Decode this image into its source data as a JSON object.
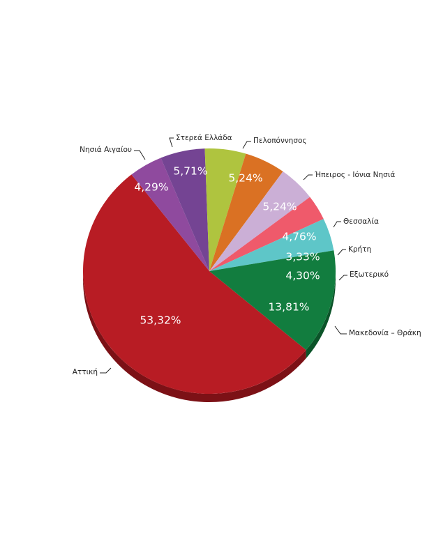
{
  "chart_data": {
    "type": "pie",
    "three_d": true,
    "legend": "none",
    "slices": [
      {
        "label": "Αττική",
        "value": 53.32,
        "display": "53,32%",
        "color": "#b81c24",
        "side": "#7c1116"
      },
      {
        "label": "Νησιά Αιγαίου",
        "value": 4.29,
        "display": "4,29%",
        "color": "#8f4a9e",
        "side": "#5f2f6a"
      },
      {
        "label": "Στερεά Ελλάδα",
        "value": 5.71,
        "display": "5,71%",
        "color": "#744493",
        "side": "#4c2c62"
      },
      {
        "label": "Πελοπόννησος",
        "value": 5.24,
        "display": "5,24%",
        "color": "#afc43f",
        "side": "#7a8a2a"
      },
      {
        "label": "Ήπειρος - Ιόνια Νησιά",
        "value": 5.24,
        "display": "5,24%",
        "color": "#da7123",
        "side": "#9a4f18"
      },
      {
        "label": "Θεσσαλία",
        "value": 4.76,
        "display": "4,76%",
        "color": "#cbafd6",
        "side": "#9a82a3"
      },
      {
        "label": "Κρήτη",
        "value": 3.33,
        "display": "3,33%",
        "color": "#ef5a6b",
        "side": "#b0404d"
      },
      {
        "label": "Εξωτερικό",
        "value": 4.3,
        "display": "4,30%",
        "color": "#5ec6c8",
        "side": "#3f9294"
      },
      {
        "label": "Μακεδονία – Θράκη",
        "value": 13.81,
        "display": "13,81%",
        "color": "#127d3f",
        "side": "#0b5429"
      }
    ]
  }
}
